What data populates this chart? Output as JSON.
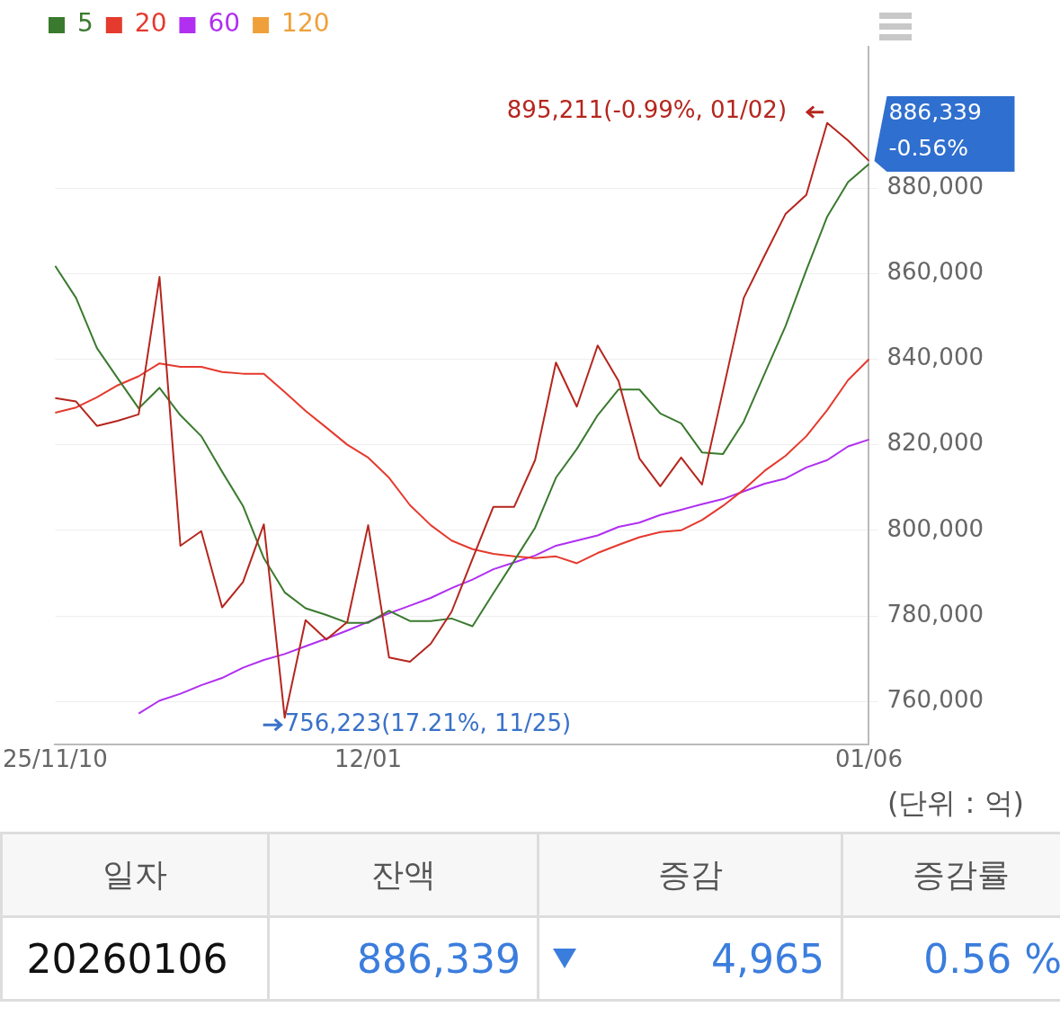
{
  "chart_data": {
    "type": "line",
    "categories": [
      "25/11/10",
      null,
      null,
      null,
      null,
      null,
      null,
      null,
      null,
      null,
      null,
      null,
      null,
      null,
      null,
      "12/01",
      null,
      null,
      null,
      null,
      null,
      null,
      null,
      null,
      null,
      null,
      null,
      null,
      null,
      null,
      null,
      null,
      null,
      null,
      null,
      null,
      null,
      null,
      null,
      "01/06"
    ],
    "series": [
      {
        "color": "#b5261e",
        "values": [
          830900,
          830100,
          824400,
          825600,
          827100,
          859200,
          796400,
          799800,
          782000,
          787900,
          801400,
          756223,
          779000,
          774500,
          778600,
          801200,
          770300,
          769300,
          773500,
          781000,
          793300,
          805500,
          805500,
          816400,
          839200,
          828900,
          843200,
          834900,
          816800,
          810300,
          817000,
          810700,
          832500,
          854300,
          864200,
          873900,
          878400,
          895211,
          891100,
          886339
        ]
      },
      {
        "name": "5",
        "color": "#3a7a2e",
        "values": [
          861800,
          854300,
          842600,
          835500,
          828500,
          833300,
          826900,
          822000,
          813700,
          805700,
          793500,
          785500,
          781800,
          780200,
          778400,
          778400,
          781200,
          778800,
          778800,
          779400,
          777600,
          785300,
          792900,
          800600,
          812300,
          819000,
          826900,
          832900,
          832900,
          827300,
          825000,
          818200,
          817800,
          825400,
          836600,
          847700,
          860800,
          873300,
          881400,
          885600
        ]
      },
      {
        "name": "20",
        "color": "#e53a2e",
        "values": [
          827500,
          828700,
          831100,
          833900,
          836000,
          839000,
          838200,
          838200,
          837000,
          836600,
          836600,
          832300,
          827900,
          824000,
          820000,
          817000,
          812300,
          805900,
          801200,
          797600,
          795600,
          794500,
          793900,
          793500,
          793900,
          792300,
          794700,
          796600,
          798400,
          799600,
          800000,
          802400,
          805700,
          809500,
          813900,
          817400,
          822000,
          828100,
          835100,
          840000
        ]
      },
      {
        "name": "60",
        "color": "#b02ff0",
        "values": [
          null,
          null,
          null,
          null,
          757200,
          760200,
          761800,
          763800,
          765500,
          767900,
          769700,
          771100,
          772900,
          774700,
          776600,
          778600,
          780600,
          782400,
          784200,
          786500,
          788500,
          790900,
          792500,
          794100,
          796400,
          797600,
          798800,
          800800,
          801800,
          803600,
          804800,
          806100,
          807300,
          809100,
          810900,
          812100,
          814700,
          816400,
          819600,
          821200
        ]
      },
      {
        "name": "120",
        "color": "#f0a03a",
        "values": [
          null,
          null,
          null,
          null,
          null,
          null,
          null,
          null,
          null,
          null,
          null,
          null,
          null,
          null,
          null,
          null,
          null,
          null,
          null,
          null,
          null,
          null,
          null,
          null,
          null,
          null,
          null,
          null,
          null,
          null,
          null,
          null,
          null,
          null,
          null,
          null,
          null,
          null,
          null,
          null
        ]
      }
    ],
    "ylim": [
      750000,
      913000
    ],
    "yticks": [
      {
        "value": 760000,
        "label": "760,000"
      },
      {
        "value": 780000,
        "label": "780,000"
      },
      {
        "value": 800000,
        "label": "800,000"
      },
      {
        "value": 820000,
        "label": "820,000"
      },
      {
        "value": 840000,
        "label": "840,000"
      },
      {
        "value": 860000,
        "label": "860,000"
      },
      {
        "value": 880000,
        "label": "880,000"
      }
    ],
    "grid": "y",
    "legend": "top left",
    "marker": "none",
    "line_style": "solid",
    "annotations": [
      "895,211(-0.99%, 01/02)",
      "756,223(17.21%, 11/25)",
      "886,339\n-0.56%",
      "(단위 : 억)",
      "일자",
      "잔액",
      "증감",
      "증감률",
      "20260106",
      "886,339",
      "4,965",
      "0.56 %"
    ]
  }
}
